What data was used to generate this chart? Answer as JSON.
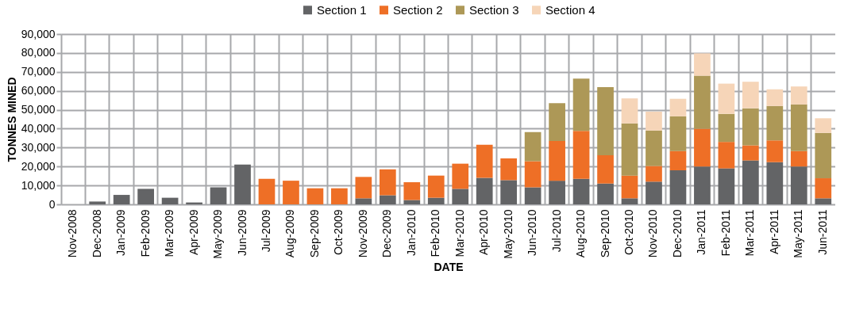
{
  "chart_data": {
    "type": "bar",
    "stacked": true,
    "xlabel": "DATE",
    "ylabel": "TONNES MINED",
    "categories": [
      "Nov-2008",
      "Dec-2008",
      "Jan-2009",
      "Feb-2009",
      "Mar-2009",
      "Apr-2009",
      "May-2009",
      "Jun-2009",
      "Jul-2009",
      "Aug-2009",
      "Sep-2009",
      "Oct-2009",
      "Nov-2009",
      "Dec-2009",
      "Jan-2010",
      "Feb-2010",
      "Mar-2010",
      "Apr-2010",
      "May-2010",
      "Jun-2010",
      "Jul-2010",
      "Aug-2010",
      "Sep-2010",
      "Oct-2010",
      "Nov-2010",
      "Dec-2010",
      "Jan-2011",
      "Feb-2011",
      "Mar-2011",
      "Apr-2011",
      "May-2011",
      "Jun-2011"
    ],
    "series": [
      {
        "name": "Section 1",
        "color": "#636466",
        "values": [
          null,
          1500,
          5000,
          8200,
          3500,
          1000,
          9000,
          21000,
          null,
          null,
          null,
          null,
          3200,
          4800,
          2300,
          3500,
          8200,
          14000,
          12800,
          9000,
          12500,
          13500,
          11000,
          3200,
          12000,
          18000,
          20000,
          19000,
          23200,
          22300,
          20000,
          3200
        ]
      },
      {
        "name": "Section 2",
        "color": "#ee6f26",
        "values": [
          null,
          null,
          null,
          null,
          null,
          null,
          null,
          null,
          13500,
          12500,
          8500,
          8500,
          11300,
          13700,
          9400,
          11700,
          13300,
          17500,
          11500,
          13800,
          21000,
          25300,
          15000,
          12000,
          8300,
          10200,
          20000,
          14000,
          8000,
          11500,
          8200,
          10600
        ]
      },
      {
        "name": "Section 3",
        "color": "#ad9857",
        "values": [
          null,
          null,
          null,
          null,
          null,
          null,
          null,
          null,
          null,
          null,
          null,
          null,
          null,
          null,
          null,
          null,
          null,
          null,
          null,
          15400,
          20000,
          27700,
          36000,
          27600,
          18700,
          18300,
          28000,
          14800,
          19600,
          18200,
          24600,
          24000
        ]
      },
      {
        "name": "Section 4",
        "color": "#f6d5b8",
        "values": [
          null,
          null,
          null,
          null,
          null,
          null,
          null,
          null,
          null,
          null,
          null,
          null,
          null,
          null,
          null,
          null,
          null,
          null,
          null,
          null,
          null,
          null,
          null,
          13200,
          10000,
          9300,
          11800,
          16000,
          14000,
          8800,
          9500,
          7700
        ]
      }
    ],
    "ylim": [
      0,
      90000
    ],
    "yticks": [
      0,
      {
        "value": 10000,
        "label": "10,000"
      },
      {
        "value": 20000,
        "label": "20,000"
      },
      {
        "value": 30000,
        "label": "30,000"
      },
      {
        "value": 40000,
        "label": "40,000"
      },
      {
        "value": 50000,
        "label": "50,000"
      },
      {
        "value": 60000,
        "label": "60,000"
      },
      {
        "value": 70000,
        "label": "70,000"
      },
      {
        "value": 80000,
        "label": "80,000"
      },
      {
        "value": 90000,
        "label": "90,000"
      }
    ],
    "grid": true,
    "legend": "top"
  }
}
